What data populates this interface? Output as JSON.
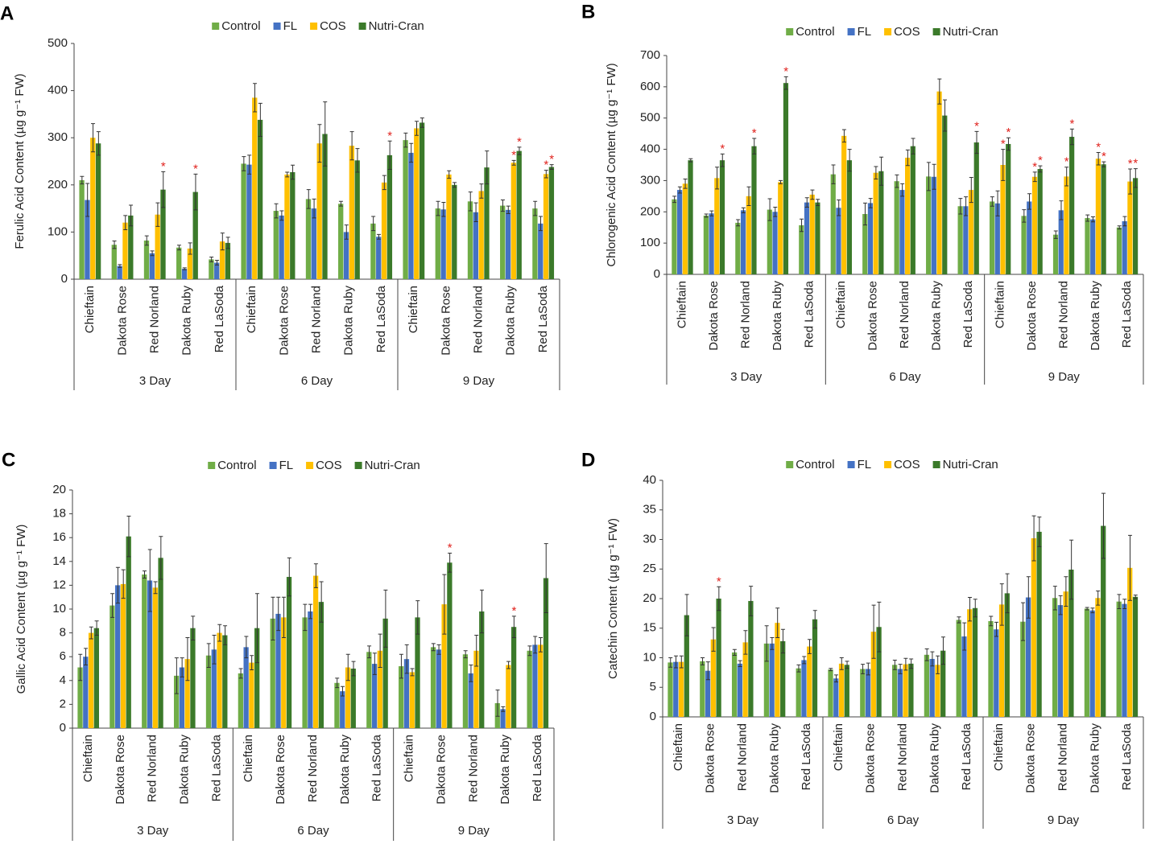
{
  "chart_data": [
    {
      "type": "bar",
      "title": "A",
      "ylabel": "Ferulic Acid Content (µg g⁻¹ FW)",
      "categories": [
        "Chieftain",
        "Dakota Rose",
        "Red Norland",
        "Dakota Ruby",
        "Red LaSoda",
        "Chieftain",
        "Dakota Rose",
        "Red Norland",
        "Dakota Ruby",
        "Red LaSoda",
        "Chieftain",
        "Dakota Rose",
        "Red Norland",
        "Dakota Ruby",
        "Red LaSoda"
      ],
      "groups": [
        "3 Day",
        "6 Day",
        "9 Day"
      ],
      "ylim": [
        0,
        500
      ],
      "yticks": [
        0,
        100,
        200,
        300,
        400,
        500
      ],
      "series": [
        {
          "name": "Control",
          "color": "#70ad47",
          "values": [
            210,
            73,
            82,
            67,
            42,
            245,
            145,
            170,
            160,
            118,
            295,
            150,
            165,
            156,
            150
          ],
          "errors": [
            8,
            8,
            10,
            5,
            5,
            15,
            15,
            20,
            5,
            15,
            15,
            15,
            20,
            12,
            15
          ]
        },
        {
          "name": "FL",
          "color": "#4472c4",
          "values": [
            168,
            28,
            55,
            22,
            35,
            243,
            135,
            150,
            100,
            90,
            268,
            148,
            142,
            147,
            118
          ],
          "errors": [
            35,
            3,
            5,
            2,
            5,
            20,
            10,
            20,
            15,
            5,
            20,
            15,
            20,
            8,
            15
          ]
        },
        {
          "name": "COS",
          "color": "#ffc000",
          "values": [
            300,
            120,
            137,
            65,
            80,
            385,
            222,
            288,
            283,
            205,
            320,
            222,
            187,
            247,
            223
          ],
          "errors": [
            30,
            15,
            25,
            12,
            18,
            30,
            5,
            40,
            30,
            15,
            15,
            8,
            15,
            5,
            8
          ],
          "significance": [
            null,
            null,
            null,
            null,
            null,
            null,
            null,
            null,
            null,
            null,
            null,
            null,
            null,
            "*",
            "*"
          ]
        },
        {
          "name": "Nutri-Cran",
          "color": "#3b7a2a",
          "values": [
            288,
            135,
            190,
            185,
            77,
            338,
            227,
            308,
            252,
            263,
            332,
            200,
            237,
            272,
            238
          ],
          "errors": [
            25,
            22,
            38,
            38,
            12,
            35,
            15,
            68,
            25,
            30,
            10,
            5,
            35,
            8,
            5
          ],
          "significance": [
            null,
            null,
            "*",
            "*",
            null,
            null,
            null,
            null,
            null,
            "*",
            null,
            null,
            null,
            "*",
            "*"
          ]
        }
      ]
    },
    {
      "type": "bar",
      "title": "B",
      "ylabel": "Chlorogenic Acid Content (µg g⁻¹ FW)",
      "categories": [
        "Chieftain",
        "Dakota Rose",
        "Red Norland",
        "Dakota Ruby",
        "Red LaSoda",
        "Chieftain",
        "Dakota Rose",
        "Red Norland",
        "Dakota Ruby",
        "Red LaSoda",
        "Chieftain",
        "Dakota Rose",
        "Red Norland",
        "Dakota Ruby",
        "Red LaSoda"
      ],
      "groups": [
        "3 Day",
        "6 Day",
        "9 Day"
      ],
      "ylim": [
        0,
        700
      ],
      "yticks": [
        0,
        100,
        200,
        300,
        400,
        500,
        600,
        700
      ],
      "series": [
        {
          "name": "Control",
          "color": "#70ad47",
          "values": [
            240,
            188,
            165,
            207,
            157,
            320,
            193,
            298,
            313,
            218,
            233,
            187,
            127,
            180,
            150
          ],
          "errors": [
            10,
            5,
            10,
            35,
            20,
            30,
            35,
            20,
            45,
            25,
            15,
            20,
            12,
            10,
            5
          ]
        },
        {
          "name": "FL",
          "color": "#4472c4",
          "values": [
            270,
            195,
            205,
            200,
            230,
            213,
            228,
            270,
            312,
            218,
            227,
            233,
            205,
            176,
            170
          ],
          "errors": [
            10,
            8,
            8,
            15,
            15,
            25,
            15,
            20,
            40,
            30,
            40,
            25,
            30,
            8,
            15
          ]
        },
        {
          "name": "COS",
          "color": "#ffc000",
          "values": [
            290,
            308,
            250,
            295,
            255,
            443,
            325,
            373,
            585,
            270,
            350,
            312,
            313,
            370,
            297
          ],
          "errors": [
            15,
            35,
            30,
            5,
            15,
            20,
            20,
            25,
            40,
            40,
            50,
            15,
            30,
            20,
            40
          ],
          "significance": [
            null,
            null,
            null,
            null,
            null,
            null,
            null,
            null,
            null,
            null,
            "*",
            "*",
            "*",
            "*",
            "*"
          ]
        },
        {
          "name": "Nutri-Cran",
          "color": "#3b7a2a",
          "values": [
            365,
            365,
            410,
            612,
            230,
            365,
            330,
            410,
            508,
            422,
            417,
            337,
            440,
            352,
            308
          ],
          "errors": [
            5,
            20,
            25,
            20,
            10,
            35,
            45,
            25,
            50,
            35,
            20,
            10,
            25,
            8,
            30
          ],
          "significance": [
            null,
            "*",
            "*",
            "*",
            null,
            null,
            null,
            null,
            null,
            "*",
            "*",
            "*",
            "*",
            "*",
            "*"
          ]
        }
      ]
    },
    {
      "type": "bar",
      "title": "C",
      "ylabel": "Gallic Acid Content (µg g⁻¹ FW)",
      "categories": [
        "Chieftain",
        "Dakota Rose",
        "Red Norland",
        "Dakota Ruby",
        "Red LaSoda",
        "Chieftain",
        "Dakota Rose",
        "Red Norland",
        "Dakota Ruby",
        "Red LaSoda",
        "Chieftain",
        "Dakota Rose",
        "Red Norland",
        "Dakota Ruby",
        "Red LaSoda"
      ],
      "groups": [
        "3 Day",
        "6 Day",
        "9 Day"
      ],
      "ylim": [
        0,
        20
      ],
      "yticks": [
        0,
        2,
        4,
        6,
        8,
        10,
        12,
        14,
        16,
        18,
        20
      ],
      "series": [
        {
          "name": "Control",
          "color": "#70ad47",
          "values": [
            5.1,
            10.3,
            12.9,
            4.4,
            6.1,
            4.6,
            9.2,
            9.3,
            3.8,
            6.4,
            5.2,
            6.8,
            6.2,
            2.1,
            6.5
          ],
          "errors": [
            1.1,
            1.0,
            0.3,
            1.5,
            1.0,
            0.4,
            1.8,
            1.1,
            0.4,
            0.5,
            1.0,
            0.3,
            0.3,
            1.1,
            0.4
          ]
        },
        {
          "name": "FL",
          "color": "#4472c4",
          "values": [
            6.0,
            12.0,
            12.4,
            5.1,
            6.6,
            6.8,
            9.6,
            9.8,
            3.1,
            5.4,
            5.8,
            6.6,
            4.6,
            1.6,
            7.0
          ],
          "errors": [
            0.7,
            1.5,
            2.6,
            0.8,
            1.2,
            0.9,
            1.4,
            0.6,
            0.4,
            0.9,
            1.2,
            0.4,
            0.7,
            0.2,
            0.7
          ]
        },
        {
          "name": "COS",
          "color": "#ffc000",
          "values": [
            8.0,
            12.1,
            11.8,
            5.8,
            8.0,
            5.5,
            9.3,
            12.8,
            5.1,
            6.5,
            4.7,
            10.4,
            6.5,
            5.3,
            7.0
          ],
          "errors": [
            0.5,
            1.2,
            0.5,
            1.8,
            0.7,
            0.6,
            1.7,
            1.0,
            1.1,
            1.4,
            0.3,
            2.5,
            1.3,
            0.3,
            0.6
          ]
        },
        {
          "name": "Nutri-Cran",
          "color": "#3b7a2a",
          "values": [
            8.4,
            16.1,
            14.3,
            8.4,
            7.8,
            8.4,
            12.7,
            10.6,
            5.0,
            9.2,
            9.3,
            13.9,
            9.8,
            8.5,
            12.6
          ],
          "errors": [
            0.6,
            1.7,
            1.8,
            1.0,
            0.8,
            2.9,
            1.6,
            1.7,
            0.6,
            2.4,
            1.4,
            0.8,
            1.8,
            0.9,
            2.9
          ],
          "significance": [
            null,
            null,
            null,
            null,
            null,
            null,
            null,
            null,
            null,
            null,
            null,
            "*",
            null,
            "*",
            null
          ]
        }
      ]
    },
    {
      "type": "bar",
      "title": "D",
      "ylabel": "Catechin Content (µg g⁻¹ FW)",
      "categories": [
        "Chieftain",
        "Dakota Rose",
        "Red Norland",
        "Dakota Ruby",
        "Red LaSoda",
        "Chieftain",
        "Dakota Rose",
        "Red Norland",
        "Dakota Ruby",
        "Red LaSoda",
        "Chieftain",
        "Dakota Rose",
        "Red Norland",
        "Dakota Ruby",
        "Red LaSoda"
      ],
      "groups": [
        "3 Day",
        "6 Day",
        "9 Day"
      ],
      "ylim": [
        0,
        40
      ],
      "yticks": [
        0,
        5,
        10,
        15,
        20,
        25,
        30,
        35,
        40
      ],
      "series": [
        {
          "name": "Control",
          "color": "#70ad47",
          "values": [
            9.2,
            9.4,
            10.9,
            12.4,
            8.2,
            8.0,
            8.1,
            8.8,
            10.5,
            16.4,
            16.2,
            16.1,
            20.1,
            18.3,
            19.5
          ],
          "errors": [
            0.8,
            0.6,
            0.5,
            3.0,
            0.6,
            0.2,
            0.8,
            0.8,
            1.0,
            0.5,
            0.8,
            3.2,
            2.0,
            0.2,
            1.2
          ]
        },
        {
          "name": "FL",
          "color": "#4472c4",
          "values": [
            9.3,
            7.8,
            9.0,
            12.4,
            9.6,
            6.5,
            8.1,
            8.1,
            9.8,
            13.6,
            14.8,
            20.2,
            18.9,
            18.0,
            19.1
          ],
          "errors": [
            1.0,
            1.5,
            0.5,
            1.0,
            0.6,
            0.6,
            1.0,
            0.8,
            1.2,
            2.3,
            1.2,
            3.5,
            1.6,
            0.4,
            0.8
          ]
        },
        {
          "name": "COS",
          "color": "#ffc000",
          "values": [
            9.3,
            13.1,
            12.6,
            15.9,
            11.9,
            9.0,
            14.4,
            8.9,
            8.8,
            18.2,
            19.0,
            30.2,
            21.2,
            20.1,
            25.2
          ],
          "errors": [
            1.0,
            2.0,
            2.0,
            2.5,
            1.2,
            1.0,
            4.5,
            1.0,
            1.5,
            2.0,
            3.5,
            3.8,
            2.5,
            1.2,
            5.5
          ]
        },
        {
          "name": "Nutri-Cran",
          "color": "#3b7a2a",
          "values": [
            17.2,
            20.0,
            19.6,
            12.8,
            16.5,
            8.8,
            15.2,
            9.0,
            11.2,
            18.4,
            20.9,
            31.3,
            24.9,
            32.3,
            20.3
          ],
          "errors": [
            3.5,
            2.0,
            2.5,
            2.0,
            1.5,
            0.6,
            4.2,
            0.8,
            2.3,
            1.5,
            3.3,
            2.5,
            5.0,
            5.5,
            0.3
          ],
          "significance": [
            null,
            "*",
            null,
            null,
            null,
            null,
            null,
            null,
            null,
            null,
            null,
            null,
            null,
            null,
            null
          ]
        }
      ]
    }
  ]
}
